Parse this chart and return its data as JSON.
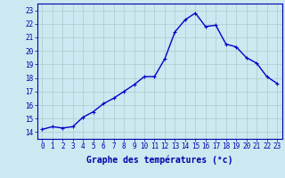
{
  "hours": [
    0,
    1,
    2,
    3,
    4,
    5,
    6,
    7,
    8,
    9,
    10,
    11,
    12,
    13,
    14,
    15,
    16,
    17,
    18,
    19,
    20,
    21,
    22,
    23
  ],
  "temps": [
    14.2,
    14.4,
    14.3,
    14.4,
    15.1,
    15.5,
    16.1,
    16.5,
    17.0,
    17.5,
    18.1,
    18.1,
    19.4,
    21.4,
    22.3,
    22.8,
    21.8,
    21.9,
    20.5,
    20.3,
    19.5,
    19.1,
    18.1,
    17.6
  ],
  "line_color": "#0000cc",
  "marker": "+",
  "bg_color": "#cce8f0",
  "grid_color": "#aacccc",
  "axis_color": "#0000aa",
  "xlabel": "Graphe des températures (°c)",
  "ylim": [
    13.5,
    23.5
  ],
  "xlim": [
    -0.5,
    23.5
  ],
  "yticks": [
    14,
    15,
    16,
    17,
    18,
    19,
    20,
    21,
    22,
    23
  ],
  "xticks": [
    0,
    1,
    2,
    3,
    4,
    5,
    6,
    7,
    8,
    9,
    10,
    11,
    12,
    13,
    14,
    15,
    16,
    17,
    18,
    19,
    20,
    21,
    22,
    23
  ],
  "xtick_labels": [
    "0",
    "1",
    "2",
    "3",
    "4",
    "5",
    "6",
    "7",
    "8",
    "9",
    "10",
    "11",
    "12",
    "13",
    "14",
    "15",
    "16",
    "17",
    "18",
    "19",
    "20",
    "21",
    "22",
    "23"
  ],
  "title_color": "#0000aa",
  "tick_color": "#0000aa",
  "font_size_xlabel": 7.0,
  "font_size_ticks": 5.5,
  "line_width": 1.0,
  "marker_size": 3.5,
  "marker_ew": 0.8
}
